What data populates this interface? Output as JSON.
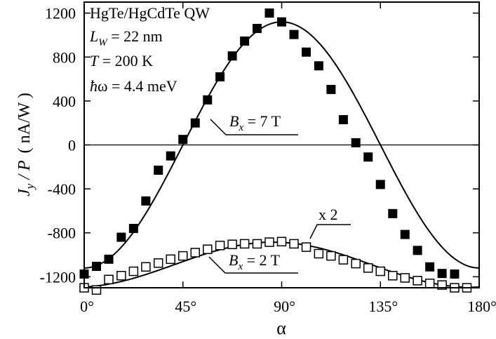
{
  "chart_data": {
    "type": "scatter",
    "xlabel": "α",
    "ylabel_main": "J",
    "ylabel_sub": "y",
    "ylabel_rest": " / P",
    "ylabel_unit": "( nA/W )",
    "xlim": [
      0,
      180
    ],
    "ylim": [
      -1300,
      1300
    ],
    "x_ticks": [
      0,
      45,
      90,
      135,
      180
    ],
    "x_tick_labels": [
      "0°",
      "45°",
      "90°",
      "135°",
      "180°"
    ],
    "y_ticks": [
      -1200,
      -800,
      -400,
      0,
      400,
      800,
      1200
    ],
    "y_tick_labels": [
      "-1200",
      "-800",
      "-400",
      "0",
      "400",
      "800",
      "1200"
    ],
    "zero_line": true,
    "annotations": {
      "lines": [
        {
          "text": "HgTe/HgCdTe QW"
        },
        {
          "italic": "L",
          "sub": "W",
          "rest": " = 22 nm"
        },
        {
          "italic": "T",
          "rest": " = 200 K"
        },
        {
          "italic": "ħ",
          "rest": "ω = 4.4 meV"
        }
      ],
      "label_7T": {
        "italic": "B",
        "sub": "x",
        "rest": " = 7 T"
      },
      "label_2T": {
        "italic": "B",
        "sub": "x",
        "rest": " = 2 T"
      },
      "label_x2": "x 2"
    },
    "series": [
      {
        "marker": "filled-square",
        "points": [
          [
            0,
            -1175
          ],
          [
            5.6,
            -1105
          ],
          [
            11.2,
            -1040
          ],
          [
            16.9,
            -840
          ],
          [
            22.5,
            -760
          ],
          [
            28.1,
            -510
          ],
          [
            33.8,
            -230
          ],
          [
            39.4,
            -100
          ],
          [
            45,
            50
          ],
          [
            50.6,
            200
          ],
          [
            56.2,
            410
          ],
          [
            61.9,
            620
          ],
          [
            67.5,
            810
          ],
          [
            73.1,
            945
          ],
          [
            78.8,
            1060
          ],
          [
            84.4,
            1200
          ],
          [
            90,
            1120
          ],
          [
            95.6,
            1005
          ],
          [
            101.2,
            845
          ],
          [
            106.9,
            720
          ],
          [
            112.5,
            505
          ],
          [
            118.1,
            230
          ],
          [
            123.8,
            20
          ],
          [
            129.4,
            -110
          ],
          [
            135,
            -360
          ],
          [
            140.6,
            -625
          ],
          [
            146.2,
            -815
          ],
          [
            151.9,
            -960
          ],
          [
            157.5,
            -1110
          ],
          [
            163.1,
            -1170
          ],
          [
            168.8,
            -1175
          ]
        ],
        "fit": {
          "form": "A*cos(2*(x-phi)) + C",
          "A": -1120,
          "phi": 0,
          "C": 0
        }
      },
      {
        "marker": "open-square",
        "points": [
          [
            0,
            -1300
          ],
          [
            5.6,
            -1320
          ],
          [
            11.2,
            -1225
          ],
          [
            16.9,
            -1190
          ],
          [
            22.5,
            -1150
          ],
          [
            28.1,
            -1110
          ],
          [
            33.8,
            -1075
          ],
          [
            39.4,
            -1040
          ],
          [
            45,
            -1010
          ],
          [
            50.6,
            -980
          ],
          [
            56.2,
            -950
          ],
          [
            61.9,
            -915
          ],
          [
            67.5,
            -905
          ],
          [
            73.1,
            -900
          ],
          [
            78.8,
            -900
          ],
          [
            84.4,
            -885
          ],
          [
            90,
            -880
          ],
          [
            95.6,
            -900
          ],
          [
            101.2,
            -930
          ],
          [
            106.9,
            -990
          ],
          [
            112.5,
            -1010
          ],
          [
            118.1,
            -1045
          ],
          [
            123.8,
            -1080
          ],
          [
            129.4,
            -1120
          ],
          [
            135,
            -1150
          ],
          [
            140.6,
            -1190
          ],
          [
            146.2,
            -1210
          ],
          [
            151.9,
            -1235
          ],
          [
            157.5,
            -1260
          ],
          [
            163.1,
            -1275
          ],
          [
            168.8,
            -1300
          ],
          [
            174.4,
            -1300
          ]
        ],
        "fit": {
          "form": "A*cos(2*(x-phi)) + C",
          "A": 205,
          "phi": 86,
          "C": -1090
        }
      }
    ]
  }
}
